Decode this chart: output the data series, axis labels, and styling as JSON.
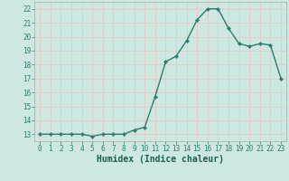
{
  "x": [
    0,
    1,
    2,
    3,
    4,
    5,
    6,
    7,
    8,
    9,
    10,
    11,
    12,
    13,
    14,
    15,
    16,
    17,
    18,
    19,
    20,
    21,
    22,
    23
  ],
  "y": [
    13.0,
    13.0,
    13.0,
    13.0,
    13.0,
    12.85,
    13.0,
    13.0,
    13.0,
    13.3,
    13.5,
    15.7,
    18.2,
    18.6,
    19.7,
    21.2,
    22.0,
    22.0,
    20.6,
    19.5,
    19.3,
    19.5,
    19.4,
    17.0
  ],
  "line_color": "#2e7d6e",
  "marker": "D",
  "marker_size": 2.2,
  "bg_color": "#cce8e0",
  "grid_color": "#e8c8c8",
  "xlabel": "Humidex (Indice chaleur)",
  "xlim": [
    -0.5,
    23.5
  ],
  "ylim": [
    12.5,
    22.5
  ],
  "yticks": [
    13,
    14,
    15,
    16,
    17,
    18,
    19,
    20,
    21,
    22
  ],
  "xticks": [
    0,
    1,
    2,
    3,
    4,
    5,
    6,
    7,
    8,
    9,
    10,
    11,
    12,
    13,
    14,
    15,
    16,
    17,
    18,
    19,
    20,
    21,
    22,
    23
  ],
  "xtick_labels": [
    "0",
    "1",
    "2",
    "3",
    "4",
    "5",
    "6",
    "7",
    "8",
    "9",
    "10",
    "11",
    "12",
    "13",
    "14",
    "15",
    "16",
    "17",
    "18",
    "19",
    "20",
    "21",
    "22",
    "23"
  ],
  "tick_fontsize": 5.5,
  "xlabel_fontsize": 7,
  "linewidth": 1.0
}
